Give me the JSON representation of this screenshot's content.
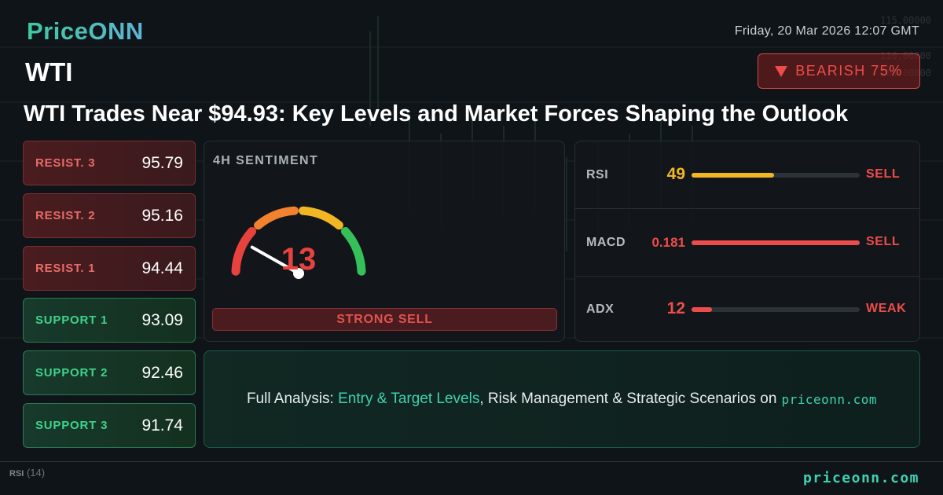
{
  "brand": {
    "logo": "PriceONN",
    "footer_site": "priceonn.com"
  },
  "datetime": "Friday, 20 Mar 2026 12:07 GMT",
  "symbol": "WTI",
  "bias": {
    "label": "BEARISH 75%",
    "color": "#ee4c4a"
  },
  "headline": "WTI Trades Near $94.93: Key Levels and Market Forces Shaping the Outlook",
  "levels": [
    {
      "label": "RESIST. 3",
      "value": "95.79",
      "kind": "resistance"
    },
    {
      "label": "RESIST. 2",
      "value": "95.16",
      "kind": "resistance"
    },
    {
      "label": "RESIST. 1",
      "value": "94.44",
      "kind": "resistance"
    },
    {
      "label": "SUPPORT 1",
      "value": "93.09",
      "kind": "support"
    },
    {
      "label": "SUPPORT 2",
      "value": "92.46",
      "kind": "support"
    },
    {
      "label": "SUPPORT 3",
      "value": "91.74",
      "kind": "support"
    }
  ],
  "sentiment": {
    "title": "4H SENTIMENT",
    "score": 13,
    "score_text": "13",
    "verdict": "STRONG SELL",
    "gauge_colors": [
      "#e8423f",
      "#f2822e",
      "#f0b623",
      "#35c05a"
    ]
  },
  "indicators": [
    {
      "name": "RSI",
      "value": "49",
      "level": 0.49,
      "signal": "SELL",
      "value_color": "#f0b623",
      "bar_color": "#f0b623",
      "signal_color": "#ee4c4a"
    },
    {
      "name": "MACD",
      "value": "0.181",
      "level": 1.0,
      "signal": "SELL",
      "value_color": "#ee4c4a",
      "bar_color": "#ee4c4a",
      "signal_color": "#ee4c4a"
    },
    {
      "name": "ADX",
      "value": "12",
      "level": 0.12,
      "signal": "WEAK",
      "value_color": "#ee4c4a",
      "bar_color": "#ee4c4a",
      "signal_color": "#ee4c4a"
    }
  ],
  "cta": {
    "prefix": "Full Analysis: ",
    "highlight": "Entry & Target Levels",
    "middle": ", Risk Management & Strategic Scenarios on",
    "site": "priceonn.com"
  },
  "background": {
    "rsi_label": "RSI",
    "rsi_period": "(14)",
    "price_ticks": [
      "115.00000",
      "110.00000",
      "105.00000"
    ]
  }
}
